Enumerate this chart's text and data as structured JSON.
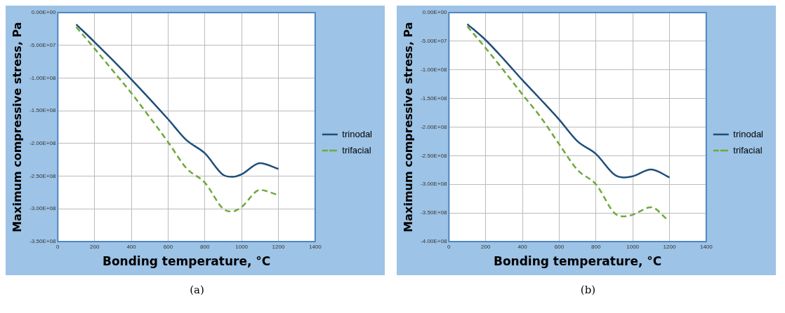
{
  "chart_data": [
    {
      "type": "line",
      "xlabel": "Bonding temperature, °C",
      "ylabel": "Maximum compressive stress, Pa",
      "annotations": [
        "(a)"
      ],
      "xlim": [
        0,
        1400
      ],
      "xticks": [
        0,
        200,
        400,
        600,
        800,
        1000,
        1200,
        1400
      ],
      "ylim": [
        -350000000,
        0
      ],
      "yticks": [
        {
          "value": -350000000,
          "label": "-3.50E+08"
        },
        {
          "value": -300000000,
          "label": "-3.00E+08"
        },
        {
          "value": -250000000,
          "label": "-2.50E+08"
        },
        {
          "value": -200000000,
          "label": "-2.00E+08"
        },
        {
          "value": -150000000,
          "label": "-1.50E+08"
        },
        {
          "value": -100000000,
          "label": "-1.00E+08"
        },
        {
          "value": -50000000,
          "label": "-5.00E+07"
        },
        {
          "value": 0,
          "label": "0.00E+00"
        }
      ],
      "grid": true,
      "legend": "right",
      "marker": "none",
      "series": [
        {
          "name": "trinodal",
          "color": "#1f4e79",
          "line_style": "solid",
          "x": [
            100,
            200,
            300,
            400,
            500,
            600,
            700,
            800,
            900,
            950,
            1000,
            1100,
            1200
          ],
          "values": [
            -18000000,
            -45000000,
            -73000000,
            -102000000,
            -132000000,
            -163000000,
            -195000000,
            -215000000,
            -248000000,
            -251000000,
            -247000000,
            -230000000,
            -239000000
          ]
        },
        {
          "name": "trifacial",
          "color": "#70a83c",
          "line_style": "dashed",
          "x": [
            100,
            200,
            300,
            400,
            500,
            600,
            700,
            800,
            900,
            950,
            1000,
            1100,
            1190
          ],
          "values": [
            -22000000,
            -55000000,
            -89000000,
            -123000000,
            -160000000,
            -198000000,
            -238000000,
            -260000000,
            -300000000,
            -304000000,
            -297000000,
            -271000000,
            -278000000
          ]
        }
      ]
    },
    {
      "type": "line",
      "xlabel": "Bonding temperature, °C",
      "ylabel": "Maximum compressive stress, Pa",
      "annotations": [
        "(b)"
      ],
      "xlim": [
        0,
        1400
      ],
      "xticks": [
        0,
        200,
        400,
        600,
        800,
        1000,
        1200,
        1400
      ],
      "ylim": [
        -400000000,
        0
      ],
      "yticks": [
        {
          "value": -400000000,
          "label": "-4.00E+08"
        },
        {
          "value": -350000000,
          "label": "-3.50E+08"
        },
        {
          "value": -300000000,
          "label": "-3.00E+08"
        },
        {
          "value": -250000000,
          "label": "-2.50E+08"
        },
        {
          "value": -200000000,
          "label": "-2.00E+08"
        },
        {
          "value": -150000000,
          "label": "-1.50E+08"
        },
        {
          "value": -100000000,
          "label": "-1.00E+08"
        },
        {
          "value": -50000000,
          "label": "-5.00E+07"
        },
        {
          "value": 0,
          "label": "0.00E+00"
        }
      ],
      "grid": true,
      "legend": "right",
      "marker": "none",
      "series": [
        {
          "name": "trinodal",
          "color": "#1f4e79",
          "line_style": "solid",
          "x": [
            100,
            200,
            300,
            400,
            500,
            600,
            700,
            800,
            900,
            950,
            1000,
            1100,
            1200
          ],
          "values": [
            -20000000,
            -48000000,
            -82000000,
            -118000000,
            -152000000,
            -187000000,
            -225000000,
            -247000000,
            -283000000,
            -288000000,
            -286000000,
            -274000000,
            -288000000
          ]
        },
        {
          "name": "trifacial",
          "color": "#70a83c",
          "line_style": "dashed",
          "x": [
            100,
            200,
            300,
            400,
            500,
            600,
            700,
            800,
            900,
            950,
            1000,
            1100,
            1190
          ],
          "values": [
            -24000000,
            -62000000,
            -102000000,
            -143000000,
            -183000000,
            -230000000,
            -275000000,
            -300000000,
            -350000000,
            -356000000,
            -353000000,
            -340000000,
            -362000000
          ]
        }
      ]
    }
  ]
}
